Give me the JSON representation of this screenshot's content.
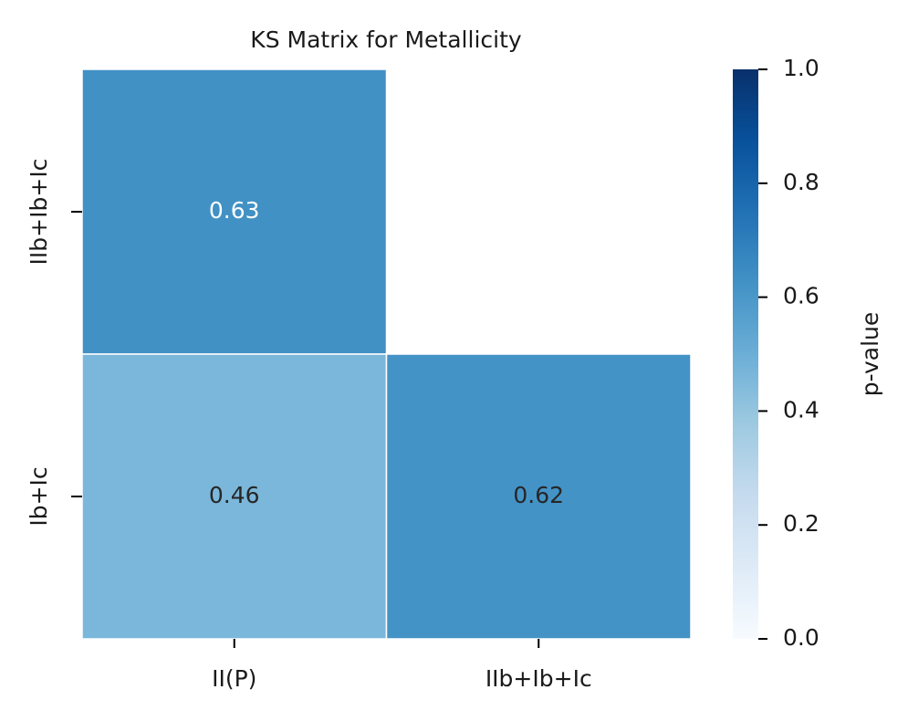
{
  "chart_data": {
    "type": "heatmap",
    "title": "KS Matrix for Metallicity",
    "x_categories": [
      "II(P)",
      "IIb+Ib+Ic"
    ],
    "y_categories": [
      "IIb+Ib+Ic",
      "Ib+Ic"
    ],
    "values": [
      [
        0.63,
        null
      ],
      [
        0.46,
        0.62
      ]
    ],
    "colorbar_label": "p-value",
    "clim": [
      0,
      1
    ],
    "cticks": [
      {
        "value": 0,
        "label": "0.0"
      },
      {
        "value": 0.2,
        "label": "0.2"
      },
      {
        "value": 0.4,
        "label": "0.4"
      },
      {
        "value": 0.6,
        "label": "0.6"
      },
      {
        "value": 0.8,
        "label": "0.8"
      },
      {
        "value": 1,
        "label": "1.0"
      }
    ],
    "colormap": [
      "#f7fbff",
      "#deebf7",
      "#c6dbef",
      "#9ecae1",
      "#6baed6",
      "#4292c6",
      "#2171b5",
      "#08519c",
      "#08306b"
    ]
  }
}
